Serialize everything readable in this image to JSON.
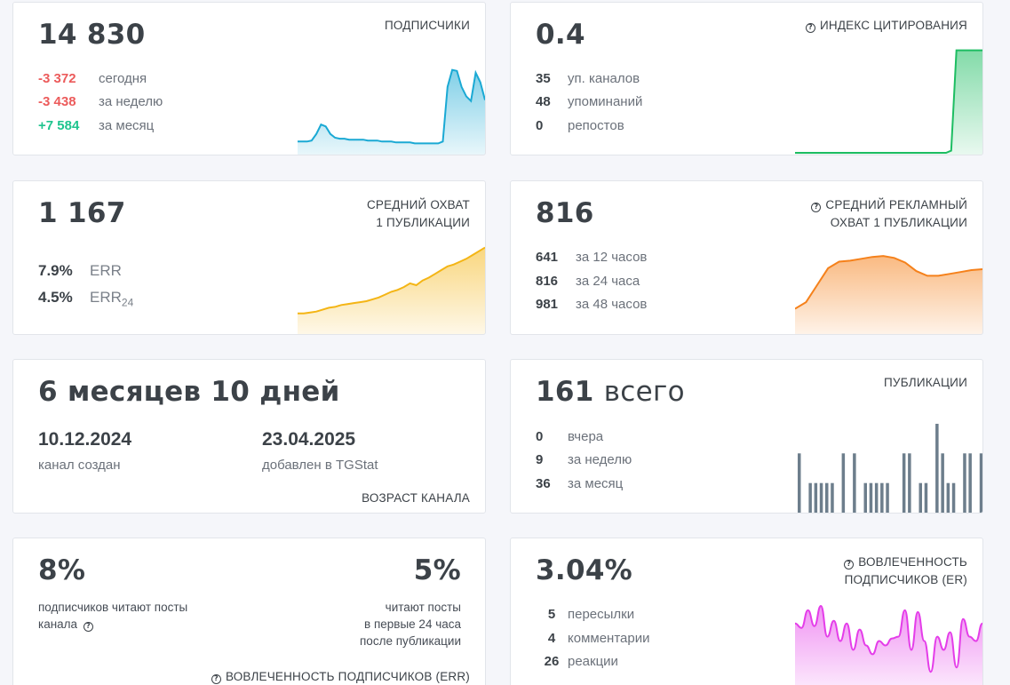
{
  "subscribers": {
    "value": "14 830",
    "title": "ПОДПИСЧИКИ",
    "stats": [
      {
        "num": "-3 372",
        "label": "сегодня",
        "tone": "negative"
      },
      {
        "num": "-3 438",
        "label": "за неделю",
        "tone": "negative"
      },
      {
        "num": "+7 584",
        "label": "за месяц",
        "tone": "positive"
      }
    ],
    "sparkline": [
      0.12,
      0.12,
      0.12,
      0.13,
      0.2,
      0.3,
      0.28,
      0.2,
      0.16,
      0.15,
      0.15,
      0.14,
      0.14,
      0.14,
      0.14,
      0.13,
      0.13,
      0.13,
      0.12,
      0.12,
      0.12,
      0.11,
      0.11,
      0.11,
      0.11,
      0.1,
      0.1,
      0.1,
      0.1,
      0.1,
      0.1,
      0.12,
      0.7,
      0.88,
      0.87,
      0.7,
      0.6,
      0.55,
      0.85,
      0.75,
      0.56
    ],
    "color": "#1aa9d4"
  },
  "citation": {
    "value": "0.4",
    "title": "ИНДЕКС ЦИТИРОВАНИЯ",
    "stats": [
      {
        "num": "35",
        "label": "уп. каналов"
      },
      {
        "num": "48",
        "label": "упоминаний"
      },
      {
        "num": "0",
        "label": "репостов"
      }
    ],
    "sparkline": [
      0,
      0,
      0,
      0,
      0,
      0,
      0,
      0,
      0,
      0,
      0,
      0,
      0,
      0,
      0,
      0,
      0,
      0,
      0,
      0,
      0,
      0,
      0,
      0,
      0,
      0,
      0,
      0,
      0,
      0,
      0.02,
      0.97,
      0.97,
      0.97,
      0.97,
      0.97,
      0.97
    ],
    "color": "#1dbd62"
  },
  "reach": {
    "value": "1 167",
    "title_line1": "СРЕДНИЙ ОХВАТ",
    "title_line2": "1 ПУБЛИКАЦИИ",
    "err_value": "7.9%",
    "err_label": "ERR",
    "err24_value": "4.5%",
    "err24_label": "ERR",
    "err24_sub": "24",
    "sparkline": [
      0.2,
      0.2,
      0.21,
      0.22,
      0.24,
      0.26,
      0.27,
      0.29,
      0.3,
      0.31,
      0.32,
      0.33,
      0.35,
      0.37,
      0.4,
      0.43,
      0.45,
      0.48,
      0.52,
      0.5,
      0.55,
      0.58,
      0.62,
      0.66,
      0.7,
      0.72,
      0.75,
      0.78,
      0.82,
      0.86,
      0.9
    ],
    "color": "#f4b515"
  },
  "ad_reach": {
    "value": "816",
    "title_line1": "СРЕДНИЙ РЕКЛАМНЫЙ",
    "title_line2": "ОХВАТ 1 ПУБЛИКАЦИИ",
    "stats": [
      {
        "num": "641",
        "label": "за 12 часов"
      },
      {
        "num": "816",
        "label": "за 24 часа"
      },
      {
        "num": "981",
        "label": "за 48 часов"
      }
    ],
    "sparkline": [
      0.25,
      0.32,
      0.5,
      0.68,
      0.75,
      0.76,
      0.78,
      0.8,
      0.81,
      0.79,
      0.74,
      0.65,
      0.6,
      0.6,
      0.62,
      0.64,
      0.66,
      0.67
    ],
    "color": "#f5811b"
  },
  "age": {
    "value": "6 месяцев 10 дней",
    "created_date": "10.12.2024",
    "created_label": "канал создан",
    "added_date": "23.04.2025",
    "added_label": "добавлен в TGStat",
    "title": "ВОЗРАСТ КАНАЛА"
  },
  "posts": {
    "value": "161",
    "value_suffix": "всего",
    "title": "ПУБЛИКАЦИИ",
    "stats": [
      {
        "num": "0",
        "label": "вчера"
      },
      {
        "num": "9",
        "label": "за неделю"
      },
      {
        "num": "36",
        "label": "за месяц"
      }
    ],
    "bars": [
      2,
      0,
      1,
      1,
      1,
      1,
      1,
      0,
      2,
      0,
      2,
      0,
      1,
      1,
      1,
      1,
      1,
      0,
      0,
      2,
      2,
      0,
      1,
      1,
      0,
      3,
      2,
      1,
      1,
      0,
      2,
      2,
      0,
      2
    ],
    "color": "#6d7e8c"
  },
  "err": {
    "value_left": "8%",
    "desc_left_line1": "подписчиков читают посты",
    "desc_left_line2": "канала",
    "value_right": "5%",
    "desc_right_line1": "читают посты",
    "desc_right_line2": "в первые 24 часа",
    "desc_right_line3": "после публикации",
    "title": "ВОВЛЕЧЕННОСТЬ ПОДПИСЧИКОВ (ERR)"
  },
  "er": {
    "value": "3.04%",
    "title_line1": "ВОВЛЕЧЕННОСТЬ",
    "title_line2": "ПОДПИСЧИКОВ (ER)",
    "stats": [
      {
        "num": "5",
        "label": "пересылки"
      },
      {
        "num": "4",
        "label": "комментарии"
      },
      {
        "num": "26",
        "label": "реакции"
      }
    ],
    "sparkline": [
      0.75,
      0.7,
      0.9,
      0.72,
      0.95,
      0.6,
      0.78,
      0.55,
      0.75,
      0.45,
      0.68,
      0.5,
      0.4,
      0.55,
      0.5,
      0.58,
      0.6,
      0.9,
      0.45,
      0.88,
      0.55,
      0.2,
      0.6,
      0.45,
      0.65,
      0.25,
      0.8,
      0.6,
      0.55,
      0.75
    ],
    "color": "#e43de9"
  }
}
